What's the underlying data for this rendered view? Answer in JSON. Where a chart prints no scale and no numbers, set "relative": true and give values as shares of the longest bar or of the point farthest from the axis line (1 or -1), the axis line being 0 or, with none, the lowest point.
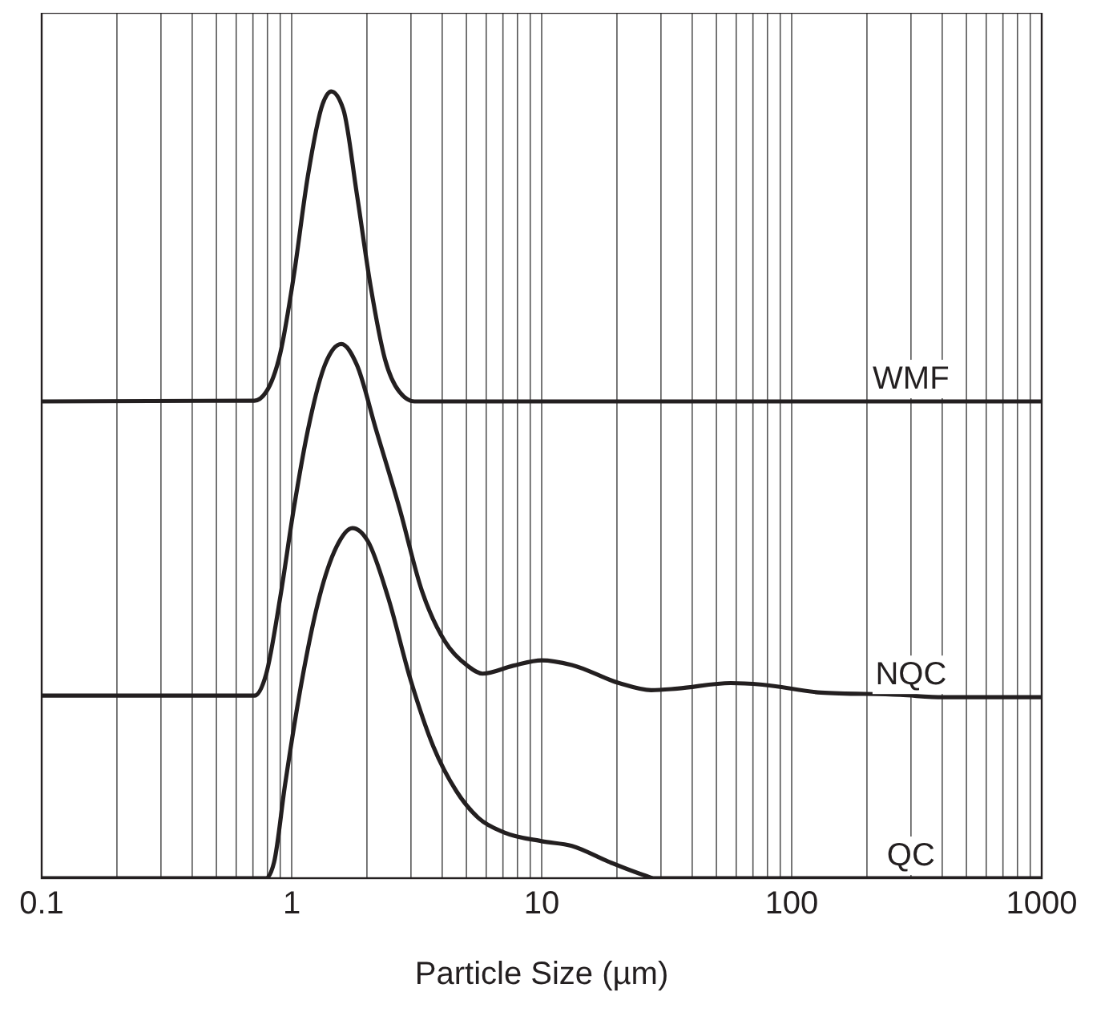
{
  "chart_data": {
    "type": "line",
    "relative": true,
    "xlabel": "Particle Size (µm)",
    "log": "x",
    "grid": "x",
    "legend": false,
    "marker": "none",
    "line_style": "solid",
    "xlim": [
      0.1,
      1000
    ],
    "xticks": [
      0.1,
      {
        "value": 0.2,
        "label": null
      },
      {
        "value": 0.3,
        "label": null
      },
      {
        "value": 0.4,
        "label": null
      },
      {
        "value": 0.5,
        "label": null
      },
      {
        "value": 0.6,
        "label": null
      },
      {
        "value": 0.7,
        "label": null
      },
      {
        "value": 0.8,
        "label": null
      },
      {
        "value": 0.9,
        "label": null
      },
      1,
      {
        "value": 2,
        "label": null
      },
      {
        "value": 3,
        "label": null
      },
      {
        "value": 4,
        "label": null
      },
      {
        "value": 5,
        "label": null
      },
      {
        "value": 6,
        "label": null
      },
      {
        "value": 7,
        "label": null
      },
      {
        "value": 8,
        "label": null
      },
      {
        "value": 9,
        "label": null
      },
      10,
      {
        "value": 20,
        "label": null
      },
      {
        "value": 30,
        "label": null
      },
      {
        "value": 40,
        "label": null
      },
      {
        "value": 50,
        "label": null
      },
      {
        "value": 60,
        "label": null
      },
      {
        "value": 70,
        "label": null
      },
      {
        "value": 80,
        "label": null
      },
      {
        "value": 90,
        "label": null
      },
      100,
      {
        "value": 200,
        "label": null
      },
      {
        "value": 300,
        "label": null
      },
      {
        "value": 400,
        "label": null
      },
      {
        "value": 500,
        "label": null
      },
      {
        "value": 600,
        "label": null
      },
      {
        "value": 700,
        "label": null
      },
      {
        "value": 800,
        "label": null
      },
      {
        "value": 900,
        "label": null
      },
      1000
    ],
    "series": [
      {
        "name": "WMF",
        "color": "#231f20",
        "x": [
          0.1,
          0.71,
          0.79,
          0.9,
          1.02,
          1.16,
          1.33,
          1.44,
          1.61,
          1.82,
          2.07,
          2.36,
          2.7,
          3.1,
          1000
        ],
        "values": [
          0.606,
          0.607,
          0.618,
          0.667,
          0.766,
          0.892,
          0.984,
          1.0,
          0.977,
          0.871,
          0.752,
          0.66,
          0.618,
          0.606,
          0.606
        ]
      },
      {
        "name": "NQC",
        "color": "#231f20",
        "x": [
          0.1,
          0.71,
          0.79,
          0.9,
          1.02,
          1.16,
          1.36,
          1.58,
          1.82,
          2.18,
          2.7,
          3.32,
          4.1,
          5.05,
          5.8,
          7.68,
          10,
          13.2,
          20.4,
          27.4,
          34.9,
          57,
          76.4,
          131,
          272,
          403,
          1000
        ],
        "values": [
          0.232,
          0.232,
          0.259,
          0.357,
          0.47,
          0.569,
          0.653,
          0.679,
          0.653,
          0.569,
          0.47,
          0.365,
          0.301,
          0.27,
          0.26,
          0.27,
          0.277,
          0.271,
          0.248,
          0.239,
          0.241,
          0.248,
          0.246,
          0.236,
          0.233,
          0.23,
          0.23
        ]
      },
      {
        "name": "QC",
        "color": "#231f20",
        "x": [
          0.1,
          0.79,
          0.85,
          0.94,
          1.11,
          1.29,
          1.51,
          1.75,
          2.02,
          2.43,
          2.99,
          3.69,
          4.55,
          5.61,
          7.1,
          10,
          13.2,
          18.5,
          26.1,
          28,
          1000
        ],
        "values": [
          0,
          0,
          0.02,
          0.118,
          0.259,
          0.357,
          0.421,
          0.445,
          0.428,
          0.357,
          0.252,
          0.167,
          0.111,
          0.076,
          0.058,
          0.047,
          0.041,
          0.021,
          0.003,
          0,
          0
        ]
      }
    ]
  }
}
